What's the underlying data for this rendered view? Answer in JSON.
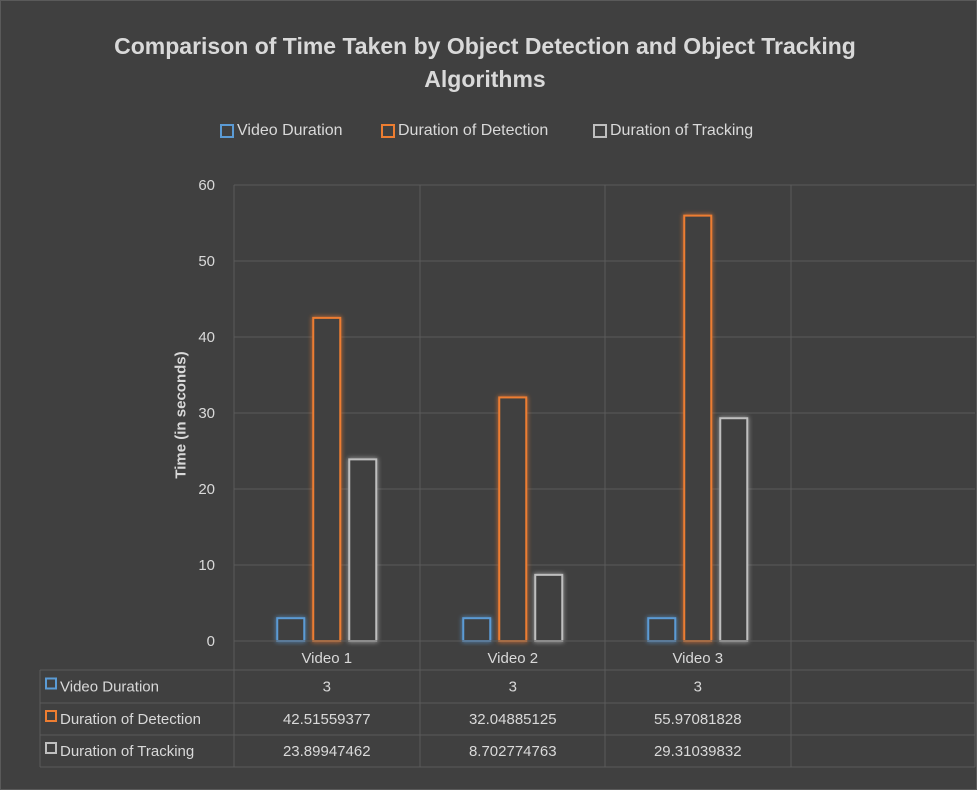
{
  "chart_data": {
    "type": "bar",
    "title": "Comparison of Time Taken by Object Detection and Object Tracking Algorithms",
    "ylabel": "Time (in seconds)",
    "xlabel": "",
    "ylim": [
      0,
      60
    ],
    "yticks": [
      0,
      10,
      20,
      30,
      40,
      50,
      60
    ],
    "categories": [
      "Video 1",
      "Video 2",
      "Video 3"
    ],
    "grid": true,
    "legend_position": "top",
    "series": [
      {
        "name": "Video Duration",
        "values": [
          3,
          3,
          3
        ],
        "labels": [
          "3",
          "3",
          "3"
        ],
        "color": "#5b9bd5"
      },
      {
        "name": "Duration of Detection",
        "values": [
          42.51559377,
          32.04885125,
          55.97081828
        ],
        "labels": [
          "42.51559377",
          "32.04885125",
          "55.97081828"
        ],
        "color": "#ed7d31"
      },
      {
        "name": "Duration of Tracking",
        "values": [
          23.89947462,
          8.702774763,
          29.31039832
        ],
        "labels": [
          "23.89947462",
          "8.702774763",
          "29.31039832"
        ],
        "color": "#bfbfbf"
      }
    ]
  },
  "colors": {
    "background": "#404040",
    "grid": "#5a5a5a",
    "text": "#d9d9d9"
  }
}
